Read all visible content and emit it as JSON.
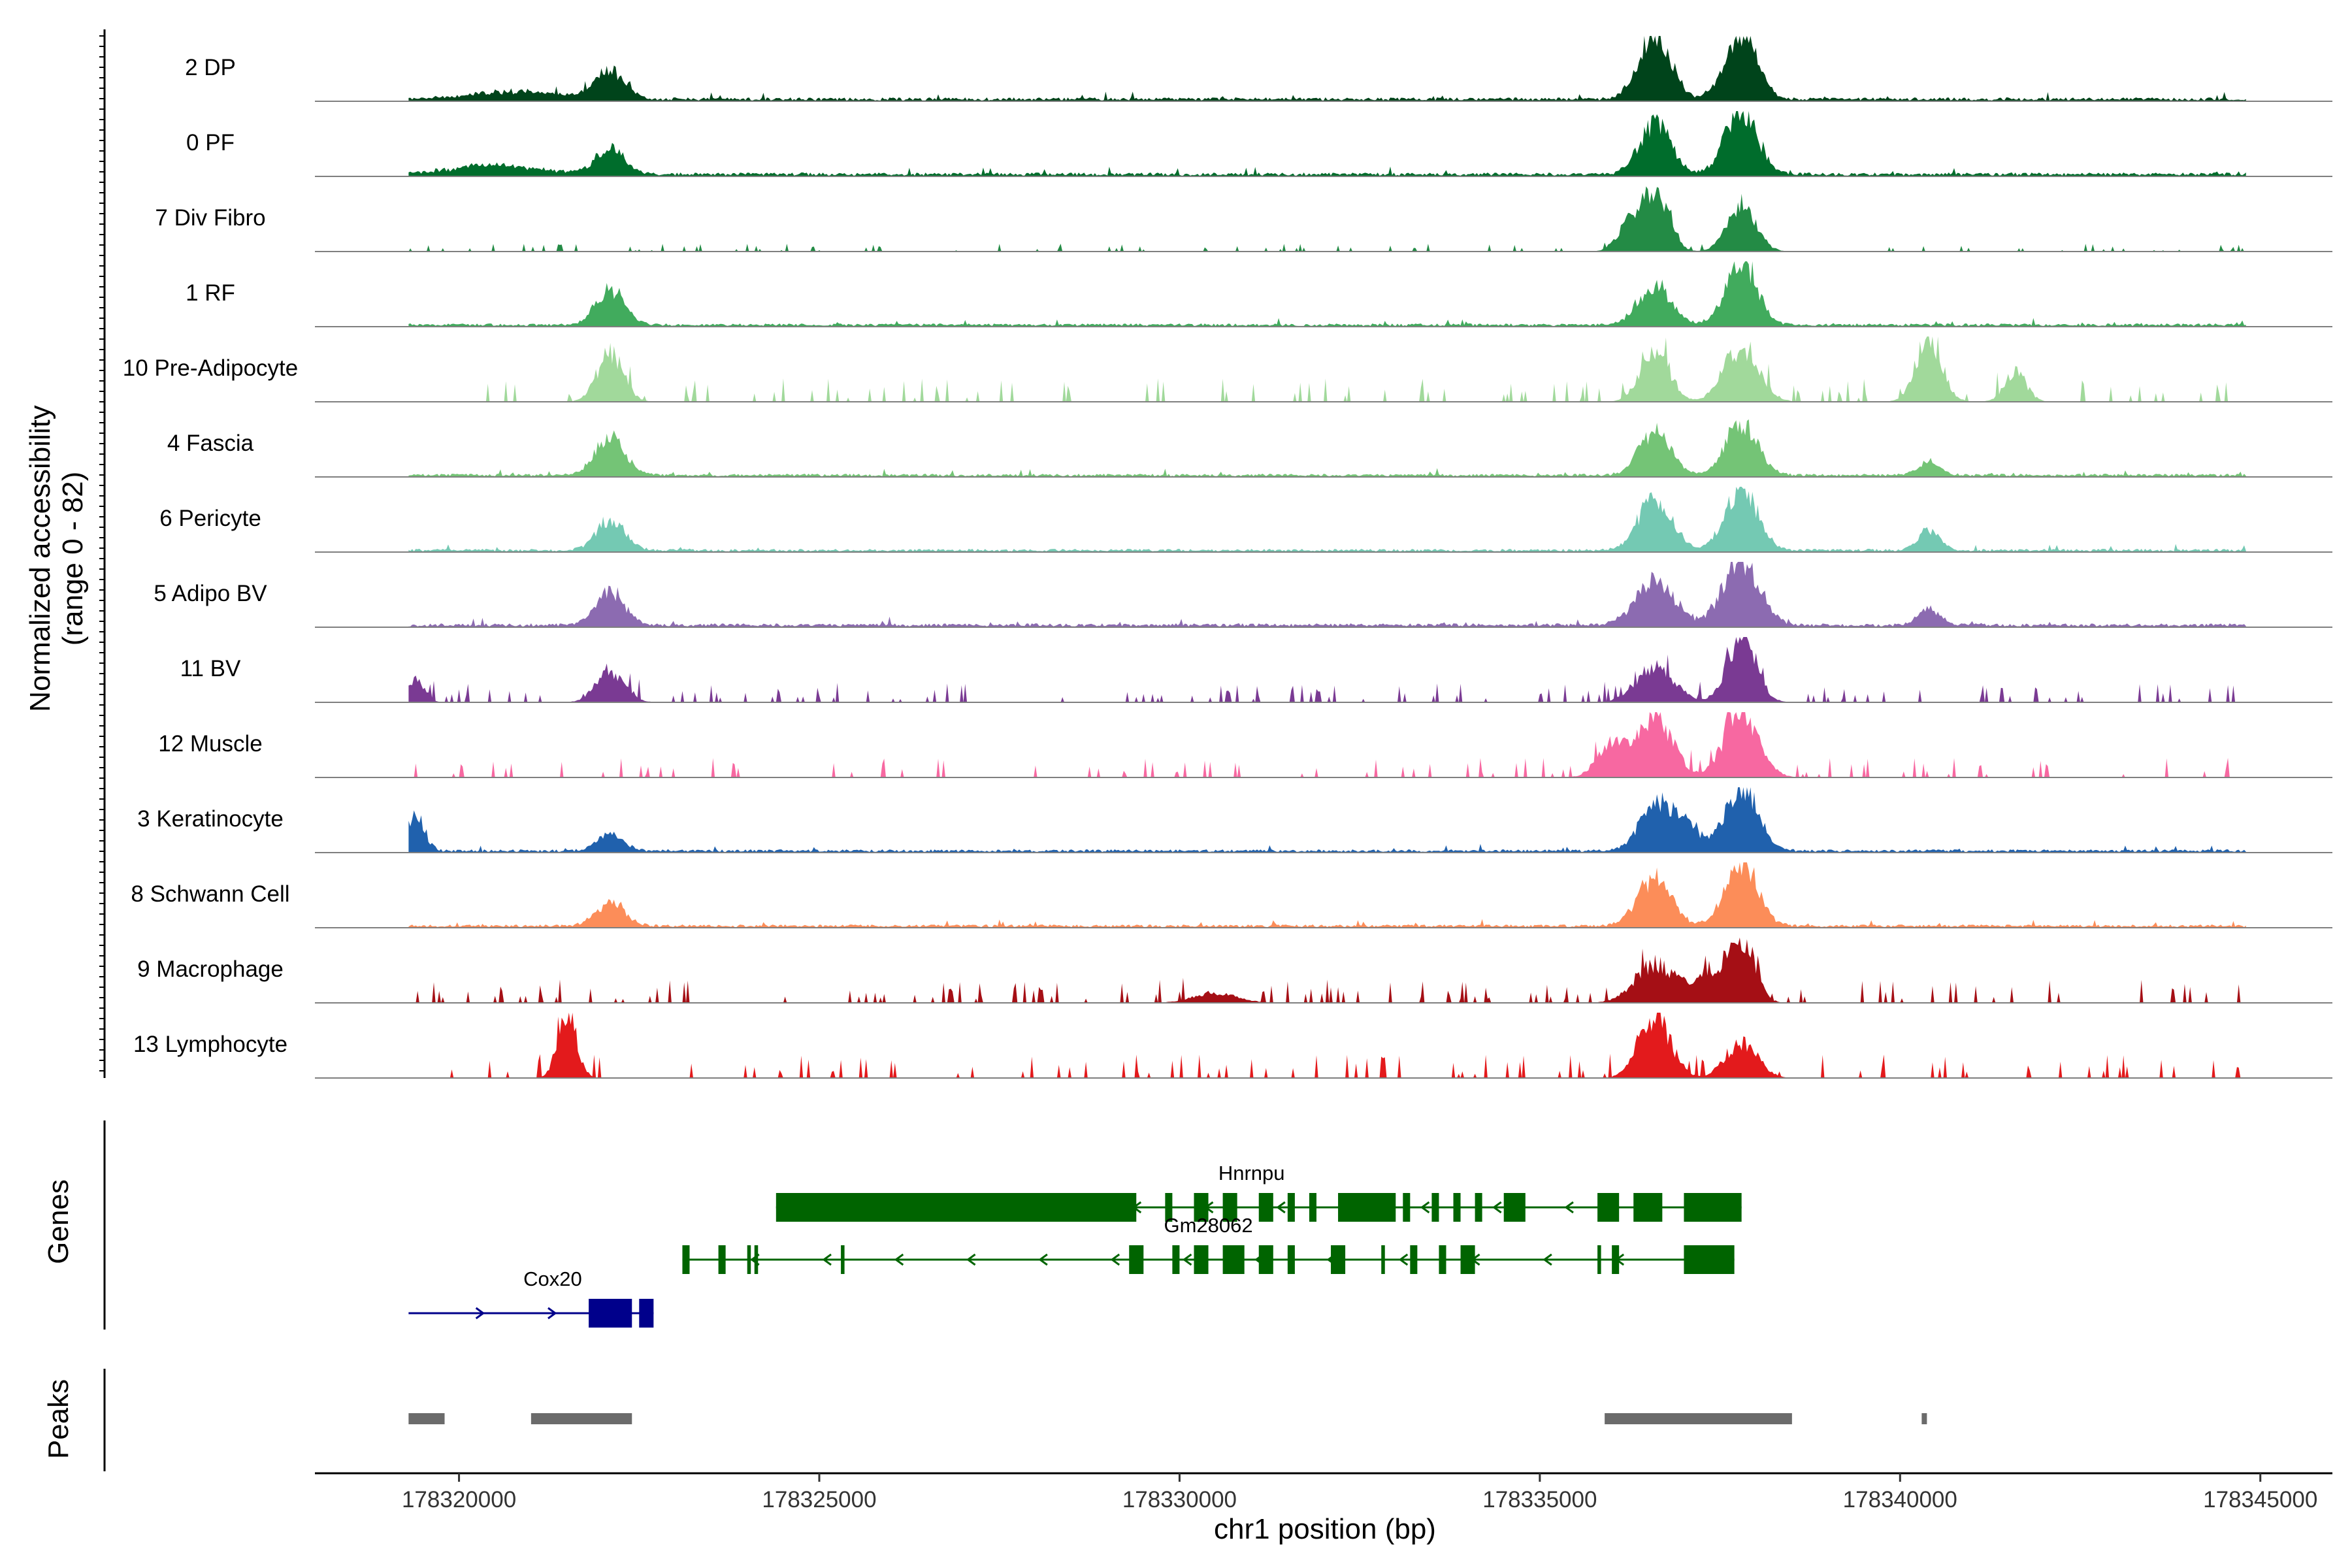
{
  "chart_data": {
    "type": "area",
    "region": {
      "chrom": "chr1",
      "xlim": [
        178318000,
        178346000
      ]
    },
    "x_axis": {
      "label": "chr1 position (bp)",
      "ticks": [
        178320000,
        178325000,
        178330000,
        178335000,
        178340000,
        178345000
      ],
      "tick_labels": [
        "178320000",
        "178325000",
        "178330000",
        "178335000",
        "178340000",
        "178345000"
      ]
    },
    "y_axis": {
      "label": "Normalized accessibility",
      "sublabel": "(range 0 - 82)",
      "range": [
        0,
        82
      ]
    },
    "tracks": [
      {
        "name": "2 DP",
        "color": "#00441b",
        "scale": 0.55,
        "peaks": [
          [
            178322100,
            200,
            0.45
          ],
          [
            178336600,
            220,
            1.0
          ],
          [
            178337800,
            220,
            1.0
          ],
          [
            178320800,
            600,
            0.12
          ]
        ],
        "noise": 0.06,
        "dense": true
      },
      {
        "name": "0 PF",
        "color": "#006d2c",
        "scale": 0.55,
        "peaks": [
          [
            178322100,
            200,
            0.4
          ],
          [
            178336600,
            220,
            0.75
          ],
          [
            178337800,
            220,
            1.0
          ],
          [
            178320500,
            600,
            0.14
          ]
        ],
        "noise": 0.06,
        "dense": true
      },
      {
        "name": "7 Div Fibro",
        "color": "#238b45",
        "scale": 0.85,
        "peaks": [
          [
            178336600,
            180,
            1.0
          ],
          [
            178337800,
            200,
            0.72
          ],
          [
            178336200,
            150,
            0.35
          ]
        ],
        "noise": 0.04,
        "dense": false
      },
      {
        "name": "1 RF",
        "color": "#41ab5d",
        "scale": 0.5,
        "peaks": [
          [
            178322100,
            200,
            0.55
          ],
          [
            178336600,
            230,
            0.6
          ],
          [
            178337800,
            210,
            1.0
          ]
        ],
        "noise": 0.05,
        "dense": true
      },
      {
        "name": "10 Pre-Adipocyte",
        "color": "#a1d99b",
        "scale": 0.55,
        "peaks": [
          [
            178322100,
            180,
            0.75
          ],
          [
            178336600,
            200,
            0.8
          ],
          [
            178337800,
            240,
            0.85
          ],
          [
            178340400,
            180,
            0.95
          ],
          [
            178341600,
            150,
            0.45
          ]
        ],
        "noise": 0.12,
        "dense": false
      },
      {
        "name": "4 Fascia",
        "color": "#74c476",
        "scale": 0.5,
        "peaks": [
          [
            178322100,
            200,
            0.6
          ],
          [
            178336600,
            220,
            0.65
          ],
          [
            178337800,
            220,
            0.8
          ],
          [
            178340400,
            150,
            0.2
          ]
        ],
        "noise": 0.05,
        "dense": true
      },
      {
        "name": "6 Pericyte",
        "color": "#74c9b3",
        "scale": 0.55,
        "peaks": [
          [
            178322100,
            200,
            0.45
          ],
          [
            178336600,
            230,
            0.8
          ],
          [
            178337800,
            220,
            1.0
          ],
          [
            178340400,
            150,
            0.3
          ]
        ],
        "noise": 0.05,
        "dense": true
      },
      {
        "name": "5 Adipo BV",
        "color": "#8c6bb1",
        "scale": 0.6,
        "peaks": [
          [
            178322100,
            200,
            0.5
          ],
          [
            178336600,
            260,
            0.7
          ],
          [
            178337800,
            250,
            1.0
          ],
          [
            178340400,
            150,
            0.25
          ]
        ],
        "noise": 0.06,
        "dense": true
      },
      {
        "name": "11 BV",
        "color": "#7a3a93",
        "scale": 0.85,
        "peaks": [
          [
            178322100,
            200,
            0.45
          ],
          [
            178336600,
            260,
            0.55
          ],
          [
            178337800,
            200,
            1.0
          ],
          [
            178319400,
            120,
            0.35
          ]
        ],
        "noise": 0.1,
        "dense": false
      },
      {
        "name": "12 Muscle",
        "color": "#f768a1",
        "scale": 0.6,
        "peaks": [
          [
            178336600,
            240,
            0.95
          ],
          [
            178337800,
            240,
            1.0
          ],
          [
            178336000,
            200,
            0.5
          ]
        ],
        "noise": 0.1,
        "dense": false
      },
      {
        "name": "3 Keratinocyte",
        "color": "#2061ad",
        "scale": 0.45,
        "peaks": [
          [
            178319400,
            120,
            0.55
          ],
          [
            178322100,
            180,
            0.25
          ],
          [
            178336600,
            220,
            0.65
          ],
          [
            178337000,
            200,
            0.4
          ],
          [
            178337800,
            220,
            1.0
          ]
        ],
        "noise": 0.05,
        "dense": true
      },
      {
        "name": "8 Schwann Cell",
        "color": "#fc8d59",
        "scale": 0.75,
        "peaks": [
          [
            178322100,
            200,
            0.35
          ],
          [
            178336600,
            230,
            0.75
          ],
          [
            178337800,
            220,
            1.0
          ]
        ],
        "noise": 0.05,
        "dense": true
      },
      {
        "name": "9 Macrophage",
        "color": "#a50f15",
        "scale": 0.85,
        "peaks": [
          [
            178336600,
            280,
            0.6
          ],
          [
            178337800,
            180,
            1.0
          ],
          [
            178337300,
            220,
            0.35
          ],
          [
            178330500,
            300,
            0.15
          ]
        ],
        "noise": 0.12,
        "dense": false
      },
      {
        "name": "13 Lymphocyte",
        "color": "#e31a1c",
        "scale": 0.55,
        "peaks": [
          [
            178321500,
            130,
            1.0
          ],
          [
            178336600,
            220,
            0.9
          ],
          [
            178337800,
            220,
            0.55
          ]
        ],
        "noise": 0.12,
        "dense": false
      }
    ],
    "genes": [
      {
        "name": "Hnrnpu",
        "strand": "-",
        "start": 178324400,
        "end": 178337800,
        "exons": [
          [
            178324400,
            178329400
          ],
          [
            178329800,
            178329900
          ],
          [
            178330200,
            178330400
          ],
          [
            178330600,
            178330800
          ],
          [
            178331100,
            178331300
          ],
          [
            178331500,
            178331600
          ],
          [
            178331800,
            178331900
          ],
          [
            178332200,
            178333000
          ],
          [
            178333100,
            178333200
          ],
          [
            178333500,
            178333600
          ],
          [
            178333800,
            178333900
          ],
          [
            178334100,
            178334200
          ],
          [
            178334500,
            178334800
          ],
          [
            178335800,
            178336100
          ],
          [
            178336300,
            178336700
          ],
          [
            178337000,
            178337800
          ]
        ],
        "color": "#006400"
      },
      {
        "name": "Gm28062",
        "strand": "-",
        "start": 178323100,
        "end": 178337700,
        "exons": [
          [
            178323100,
            178323200
          ],
          [
            178323600,
            178323700
          ],
          [
            178324000,
            178324050
          ],
          [
            178324100,
            178324150
          ],
          [
            178325300,
            178325350
          ],
          [
            178329300,
            178329500
          ],
          [
            178329900,
            178330000
          ],
          [
            178330200,
            178330400
          ],
          [
            178330600,
            178330900
          ],
          [
            178331100,
            178331300
          ],
          [
            178331500,
            178331600
          ],
          [
            178332100,
            178332300
          ],
          [
            178332800,
            178332850
          ],
          [
            178333200,
            178333300
          ],
          [
            178333600,
            178333700
          ],
          [
            178333900,
            178334100
          ],
          [
            178335800,
            178335850
          ],
          [
            178336000,
            178336100
          ],
          [
            178337000,
            178337700
          ]
        ],
        "color": "#006400"
      },
      {
        "name": "Cox20",
        "strand": "+",
        "start": 178319300,
        "end": 178322700,
        "exons": [
          [
            178321800,
            178322400
          ],
          [
            178322500,
            178322700
          ]
        ],
        "color": "#00008b"
      }
    ],
    "peaks": [
      [
        178319300,
        178319800
      ],
      [
        178321000,
        178322400
      ],
      [
        178335900,
        178338500
      ],
      [
        178340300,
        178340350
      ]
    ],
    "peaks_color": "#6b6b6b",
    "row_labels": {
      "genes": "Genes",
      "peaks": "Peaks"
    }
  }
}
